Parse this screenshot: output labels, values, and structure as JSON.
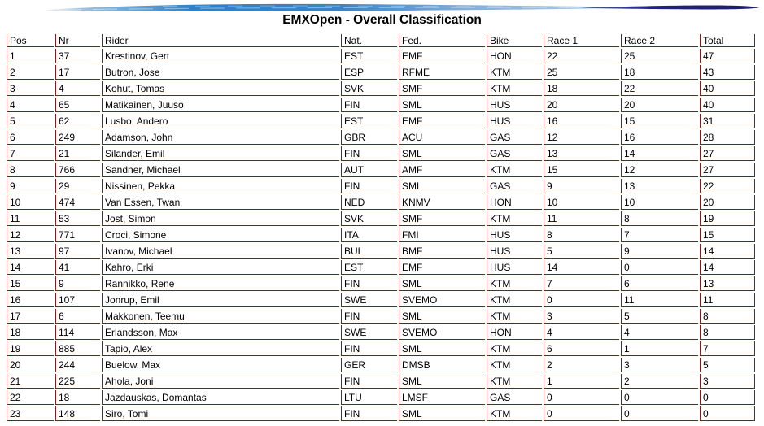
{
  "page": {
    "title": "EMXOpen - Overall Classification"
  },
  "decoration": {
    "swoosh": {
      "light_end": "#cfe0ef",
      "light_mid": "#93bcdf",
      "blue_main": "#2f80c5",
      "blue_mid": "#3b84c6",
      "blue_fade": "#86afd8",
      "blue_tail": "#b9d1e8",
      "dark_start": "#4b5ab0",
      "dark_mid": "#23237c",
      "dark_end": "#1d1d68"
    }
  },
  "table": {
    "border_color": "#7b1d1a",
    "columns": [
      {
        "key": "pos",
        "label": "Pos",
        "align": "right"
      },
      {
        "key": "nr",
        "label": "Nr",
        "align": "right"
      },
      {
        "key": "rider",
        "label": "Rider",
        "align": "left"
      },
      {
        "key": "nat",
        "label": "Nat.",
        "align": "left"
      },
      {
        "key": "fed",
        "label": "Fed.",
        "align": "left"
      },
      {
        "key": "bike",
        "label": "Bike",
        "align": "left"
      },
      {
        "key": "race1",
        "label": "Race 1",
        "align": "right"
      },
      {
        "key": "race2",
        "label": "Race 2",
        "align": "right"
      },
      {
        "key": "total",
        "label": "Total",
        "align": "right"
      }
    ],
    "rows": [
      {
        "pos": "1",
        "nr": "37",
        "rider": "Krestinov, Gert",
        "nat": "EST",
        "fed": "EMF",
        "bike": "HON",
        "race1": "22",
        "race2": "25",
        "total": "47"
      },
      {
        "pos": "2",
        "nr": "17",
        "rider": "Butron, Jose",
        "nat": "ESP",
        "fed": "RFME",
        "bike": "KTM",
        "race1": "25",
        "race2": "18",
        "total": "43"
      },
      {
        "pos": "3",
        "nr": "4",
        "rider": "Kohut, Tomas",
        "nat": "SVK",
        "fed": "SMF",
        "bike": "KTM",
        "race1": "18",
        "race2": "22",
        "total": "40"
      },
      {
        "pos": "4",
        "nr": "65",
        "rider": "Matikainen, Juuso",
        "nat": "FIN",
        "fed": "SML",
        "bike": "HUS",
        "race1": "20",
        "race2": "20",
        "total": "40"
      },
      {
        "pos": "5",
        "nr": "62",
        "rider": "Lusbo, Andero",
        "nat": "EST",
        "fed": "EMF",
        "bike": "HUS",
        "race1": "16",
        "race2": "15",
        "total": "31"
      },
      {
        "pos": "6",
        "nr": "249",
        "rider": "Adamson, John",
        "nat": "GBR",
        "fed": "ACU",
        "bike": "GAS",
        "race1": "12",
        "race2": "16",
        "total": "28"
      },
      {
        "pos": "7",
        "nr": "21",
        "rider": "Silander, Emil",
        "nat": "FIN",
        "fed": "SML",
        "bike": "GAS",
        "race1": "13",
        "race2": "14",
        "total": "27"
      },
      {
        "pos": "8",
        "nr": "766",
        "rider": "Sandner, Michael",
        "nat": "AUT",
        "fed": "AMF",
        "bike": "KTM",
        "race1": "15",
        "race2": "12",
        "total": "27"
      },
      {
        "pos": "9",
        "nr": "29",
        "rider": "Nissinen, Pekka",
        "nat": "FIN",
        "fed": "SML",
        "bike": "GAS",
        "race1": "9",
        "race2": "13",
        "total": "22"
      },
      {
        "pos": "10",
        "nr": "474",
        "rider": "Van Essen, Twan",
        "nat": "NED",
        "fed": "KNMV",
        "bike": "HON",
        "race1": "10",
        "race2": "10",
        "total": "20"
      },
      {
        "pos": "11",
        "nr": "53",
        "rider": "Jost, Simon",
        "nat": "SVK",
        "fed": "SMF",
        "bike": "KTM",
        "race1": "11",
        "race2": "8",
        "total": "19"
      },
      {
        "pos": "12",
        "nr": "771",
        "rider": "Croci, Simone",
        "nat": "ITA",
        "fed": "FMI",
        "bike": "HUS",
        "race1": "8",
        "race2": "7",
        "total": "15"
      },
      {
        "pos": "13",
        "nr": "97",
        "rider": "Ivanov, Michael",
        "nat": "BUL",
        "fed": "BMF",
        "bike": "HUS",
        "race1": "5",
        "race2": "9",
        "total": "14"
      },
      {
        "pos": "14",
        "nr": "41",
        "rider": "Kahro, Erki",
        "nat": "EST",
        "fed": "EMF",
        "bike": "HUS",
        "race1": "14",
        "race2": "0",
        "total": "14"
      },
      {
        "pos": "15",
        "nr": "9",
        "rider": "Rannikko, Rene",
        "nat": "FIN",
        "fed": "SML",
        "bike": "KTM",
        "race1": "7",
        "race2": "6",
        "total": "13"
      },
      {
        "pos": "16",
        "nr": "107",
        "rider": "Jonrup, Emil",
        "nat": "SWE",
        "fed": "SVEMO",
        "bike": "KTM",
        "race1": "0",
        "race2": "11",
        "total": "11"
      },
      {
        "pos": "17",
        "nr": "6",
        "rider": "Makkonen, Teemu",
        "nat": "FIN",
        "fed": "SML",
        "bike": "KTM",
        "race1": "3",
        "race2": "5",
        "total": "8"
      },
      {
        "pos": "18",
        "nr": "114",
        "rider": "Erlandsson, Max",
        "nat": "SWE",
        "fed": "SVEMO",
        "bike": "HON",
        "race1": "4",
        "race2": "4",
        "total": "8"
      },
      {
        "pos": "19",
        "nr": "885",
        "rider": "Tapio, Alex",
        "nat": "FIN",
        "fed": "SML",
        "bike": "KTM",
        "race1": "6",
        "race2": "1",
        "total": "7"
      },
      {
        "pos": "20",
        "nr": "244",
        "rider": "Buelow, Max",
        "nat": "GER",
        "fed": "DMSB",
        "bike": "KTM",
        "race1": "2",
        "race2": "3",
        "total": "5"
      },
      {
        "pos": "21",
        "nr": "225",
        "rider": "Ahola, Joni",
        "nat": "FIN",
        "fed": "SML",
        "bike": "KTM",
        "race1": "1",
        "race2": "2",
        "total": "3"
      },
      {
        "pos": "22",
        "nr": "18",
        "rider": "Jazdauskas, Domantas",
        "nat": "LTU",
        "fed": "LMSF",
        "bike": "GAS",
        "race1": "0",
        "race2": "0",
        "total": "0"
      },
      {
        "pos": "23",
        "nr": "148",
        "rider": "Siro, Tomi",
        "nat": "FIN",
        "fed": "SML",
        "bike": "KTM",
        "race1": "0",
        "race2": "0",
        "total": "0"
      }
    ]
  }
}
